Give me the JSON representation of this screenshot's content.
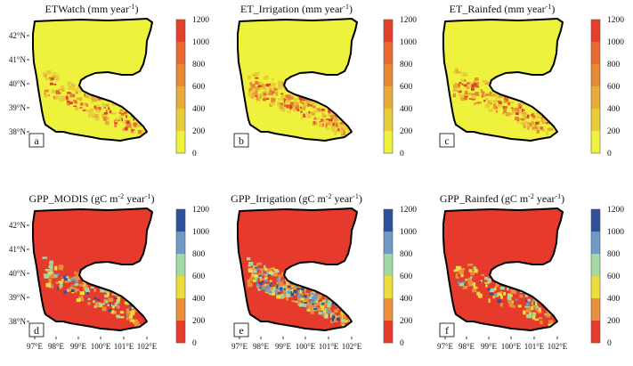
{
  "chart_data": [
    {
      "type": "heatmap",
      "panel": "a",
      "title": "ETWatch (mm year",
      "title_sup": "-1",
      "title_close": ")",
      "colorbar": {
        "scheme": "et",
        "ticks": [
          "0",
          "200",
          "400",
          "600",
          "800",
          "1000",
          "1200"
        ]
      },
      "lat_ticks": [
        "38°N",
        "39°N",
        "40°N",
        "41°N",
        "42°N"
      ],
      "lon_ticks": [],
      "low_intensity": 0.25,
      "high_intensity": 0.15
    },
    {
      "type": "heatmap",
      "panel": "b",
      "title": "ET_Irrigation (mm year",
      "title_sup": "-1",
      "title_close": ")",
      "colorbar": {
        "scheme": "et",
        "ticks": [
          "0",
          "200",
          "400",
          "600",
          "800",
          "1000",
          "1200"
        ]
      },
      "lat_ticks": [],
      "lon_ticks": [],
      "low_intensity": 0.55,
      "high_intensity": 0.2
    },
    {
      "type": "heatmap",
      "panel": "c",
      "title": "ET_Rainfed (mm year",
      "title_sup": "-1",
      "title_close": ")",
      "colorbar": {
        "scheme": "et",
        "ticks": [
          "0",
          "200",
          "400",
          "600",
          "800",
          "1000",
          "1200"
        ]
      },
      "lat_ticks": [],
      "lon_ticks": [],
      "low_intensity": 0.3,
      "high_intensity": 0.15
    },
    {
      "type": "heatmap",
      "panel": "d",
      "title": "GPP_MODIS (gC m",
      "title_sup": "-2",
      "title_mid": " year",
      "title_sup2": "-1",
      "title_close": ")",
      "colorbar": {
        "scheme": "gpp",
        "ticks": [
          "0",
          "200",
          "400",
          "600",
          "800",
          "1000",
          "1200"
        ]
      },
      "lat_ticks": [
        "38°N",
        "39°N",
        "40°N",
        "41°N",
        "42°N"
      ],
      "lon_ticks": [
        "97°E",
        "98°E",
        "99°E",
        "100°E",
        "101°E",
        "102°E"
      ],
      "low_intensity": 0.35,
      "high_intensity": 0.05
    },
    {
      "type": "heatmap",
      "panel": "e",
      "title": "GPP_Irrigation (gC m",
      "title_sup": "-2",
      "title_mid": " year",
      "title_sup2": "-1",
      "title_close": ")",
      "colorbar": {
        "scheme": "gpp",
        "ticks": [
          "0",
          "200",
          "400",
          "600",
          "800",
          "1000",
          "1200"
        ]
      },
      "lat_ticks": [],
      "lon_ticks": [
        "97°E",
        "98°E",
        "99°E",
        "100°E",
        "101°E",
        "102°E"
      ],
      "low_intensity": 0.75,
      "high_intensity": 0.35
    },
    {
      "type": "heatmap",
      "panel": "f",
      "title": "GPP_Rainfed (gC m",
      "title_sup": "-2",
      "title_mid": " year",
      "title_sup2": "-1",
      "title_close": ")",
      "colorbar": {
        "scheme": "gpp",
        "ticks": [
          "0",
          "200",
          "400",
          "600",
          "800",
          "1000",
          "1200"
        ]
      },
      "lat_ticks": [],
      "lon_ticks": [
        "97°E",
        "98°E",
        "99°E",
        "100°E",
        "101°E",
        "102°E"
      ],
      "low_intensity": 0.2,
      "high_intensity": 0.02
    }
  ],
  "colors": {
    "et": [
      "#eef23c",
      "#e8cc3a",
      "#e8ab3a",
      "#e68a35",
      "#e66a30",
      "#e43f2b"
    ],
    "gpp": [
      "#e63a2c",
      "#e8903b",
      "#eddc3c",
      "#a2d9a2",
      "#6f99c6",
      "#2e4f99"
    ]
  }
}
